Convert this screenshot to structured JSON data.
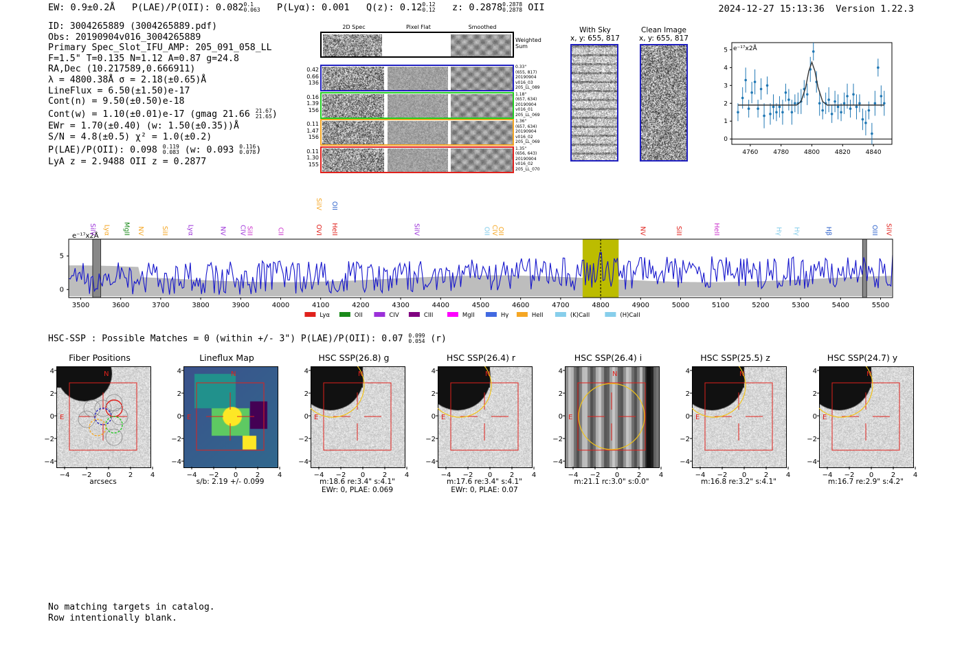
{
  "header": {
    "ew_text": "EW: 0.9±0.2Å",
    "plae_label": "P(LAE)/P(OII): 0.082",
    "plae_hi": "0.1",
    "plae_lo": "0.063",
    "plya_text": "P(Lyα): 0.001",
    "qz_label": "Q(z): 0.12",
    "qz_hi": "0.12",
    "qz_lo": "0.12",
    "z_label": "z: 0.2878",
    "z_hi": "0.2878",
    "z_lo": "0.2878",
    "z_line": "OII",
    "timestamp": "2024-12-27 15:13:36",
    "version": "Version 1.22.3"
  },
  "info": {
    "l1": "ID: 3004265889 (3004265889.pdf)",
    "l2": "Obs: 20190904v016_3004265889",
    "l3": "Primary Spec_Slot_IFU_AMP: 205_091_058_LL",
    "l4": "F=1.5\"  T=0.135  N=1.12  A=0.87  g=24.8",
    "l5": "RA,Dec (10.217589,0.666911)",
    "l6": "λ = 4800.38Å  σ = 2.18(±0.65)Å",
    "l7": "LineFlux = 6.50(±1.50)e-17",
    "l8": "Cont(n) = 9.50(±0.50)e-18",
    "l9a": "Cont(w) = 1.10(±0.01)e-17 (gmag 21.66",
    "l9hi": "21.67",
    "l9lo": "21.65",
    "l9b": ")",
    "l10": "EWr = 1.70(±0.40) (w: 1.50(±0.35))Å",
    "l11": "S/N = 4.8(±0.5)  χ² = 1.0(±0.2)",
    "l12a": "P(LAE)/P(OII): 0.098",
    "l12hi": "0.119",
    "l12lo": "0.083",
    "l12b": "(w: 0.093",
    "l12whi": "0.116",
    "l12wlo": "0.078",
    "l12c": ")",
    "l13": "LyA z = 2.9488  OII z = 0.2877"
  },
  "cutouts": {
    "col_2d": "2D Spec",
    "col_flat": "Pixel Flat",
    "col_smooth": "Smoothed",
    "weighted": "Weighted Sum",
    "rows": [
      {
        "left": [
          "0.42",
          "0.66",
          "136"
        ],
        "right": [
          "0.33\"",
          "(655, 817)",
          "20190904",
          "v016_03",
          "205_LL_089"
        ],
        "color": "#1f1fbf"
      },
      {
        "left": [
          "0.16",
          "1.39",
          "156"
        ],
        "right": [
          "1.18\"",
          "(657, 634)",
          "20190904",
          "v016_01",
          "205_LL_069"
        ],
        "color": "#22cc22"
      },
      {
        "left": [
          "0.11",
          "1.47",
          "156"
        ],
        "right": [
          "1.36\"",
          "(657, 634)",
          "20190904",
          "v016_02",
          "205_LL_069"
        ],
        "color": "#f5a623"
      },
      {
        "left": [
          "0.11",
          "1.30",
          "155"
        ],
        "right": [
          "1.35\"",
          "(656, 643)",
          "20190904",
          "v016_02",
          "205_LL_070"
        ],
        "color": "#e0211c"
      }
    ]
  },
  "sky": {
    "with_sky_title": "With Sky",
    "with_sky_coords": "x, y: 655, 817",
    "clean_title": "Clean Image",
    "clean_coords": "x, y: 655, 817"
  },
  "zoom_chart": {
    "unit_label": "e⁻¹⁷x2Å",
    "x_ticks": [
      "4760",
      "4780",
      "4800",
      "4820",
      "4840"
    ],
    "y_ticks": [
      "0",
      "1",
      "2",
      "3",
      "4",
      "5"
    ]
  },
  "full_spectrum": {
    "unit_label": "e⁻¹⁷x2Å",
    "x_ticks": [
      "3500",
      "3600",
      "3700",
      "3800",
      "3900",
      "4000",
      "4100",
      "4200",
      "4300",
      "4400",
      "4500",
      "4600",
      "4700",
      "4800",
      "4900",
      "5000",
      "5100",
      "5200",
      "5300",
      "5400",
      "5500"
    ],
    "y_ticks": [
      "0",
      "5"
    ],
    "line_labels": [
      {
        "text": "SiIV",
        "x": 3520,
        "color": "#9b30d9",
        "row": 1
      },
      {
        "text": "Lyα",
        "x": 3555,
        "color": "#f5a623",
        "row": 1
      },
      {
        "text": "MgII",
        "x": 3605,
        "color": "#1a8a1a",
        "row": 1
      },
      {
        "text": "NV",
        "x": 3640,
        "color": "#f5a623",
        "row": 1
      },
      {
        "text": "SiII",
        "x": 3700,
        "color": "#f5a623",
        "row": 1
      },
      {
        "text": "Lyα",
        "x": 3765,
        "color": "#9b30d9",
        "row": 1
      },
      {
        "text": "NV",
        "x": 3845,
        "color": "#9b30d9",
        "row": 1
      },
      {
        "text": "CIV",
        "x": 3895,
        "color": "#9b30d9",
        "row": 1
      },
      {
        "text": "SiII",
        "x": 3912,
        "color": "#cc33cc",
        "row": 1
      },
      {
        "text": "CII",
        "x": 3990,
        "color": "#cc33cc",
        "row": 1
      },
      {
        "text": "OVI",
        "x": 4085,
        "color": "#e0211c",
        "row": 1
      },
      {
        "text": "SiIV",
        "x": 4085,
        "color": "#f5a623",
        "row": 0
      },
      {
        "text": "HeII",
        "x": 4125,
        "color": "#e0211c",
        "row": 1
      },
      {
        "text": "OII",
        "x": 4125,
        "color": "#3366cc",
        "row": 0
      },
      {
        "text": "SiIV",
        "x": 4330,
        "color": "#9b30d9",
        "row": 1
      },
      {
        "text": "OII",
        "x": 4505,
        "color": "#87ceeb",
        "row": 1
      },
      {
        "text": "CIV",
        "x": 4525,
        "color": "#f5a623",
        "row": 1
      },
      {
        "text": "OII",
        "x": 4540,
        "color": "#f5a623",
        "row": 1
      },
      {
        "text": "NV",
        "x": 4895,
        "color": "#e0211c",
        "row": 1
      },
      {
        "text": "SiII",
        "x": 4985,
        "color": "#e0211c",
        "row": 1
      },
      {
        "text": "HeII",
        "x": 5080,
        "color": "#cc33cc",
        "row": 1
      },
      {
        "text": "Hγ",
        "x": 5235,
        "color": "#87ceeb",
        "row": 1
      },
      {
        "text": "Hγ",
        "x": 5280,
        "color": "#87ceeb",
        "row": 1
      },
      {
        "text": "Hβ",
        "x": 5360,
        "color": "#3366cc",
        "row": 1
      },
      {
        "text": "OIII",
        "x": 5475,
        "color": "#3366cc",
        "row": 1
      },
      {
        "text": "SiIV",
        "x": 5510,
        "color": "#e0211c",
        "row": 1
      }
    ],
    "legend": [
      {
        "label": "Lyα",
        "color": "#e0211c"
      },
      {
        "label": "OII",
        "color": "#1a8a1a"
      },
      {
        "label": "CIV",
        "color": "#9b30d9"
      },
      {
        "label": "CIII",
        "color": "#800080"
      },
      {
        "label": "MgII",
        "color": "#ff00ff"
      },
      {
        "label": "Hγ",
        "color": "#4169e1"
      },
      {
        "label": "HeII",
        "color": "#f5a623"
      },
      {
        "label": "(K)CaII",
        "color": "#87ceeb"
      },
      {
        "label": "(H)CaII",
        "color": "#87ceeb"
      }
    ]
  },
  "hsc": {
    "summary_a": "HSC-SSP : Possible Matches = 0 (within +/- 3\")  P(LAE)/P(OII): 0.07",
    "summary_hi": "0.099",
    "summary_lo": "0.054",
    "summary_b": "(r)",
    "axis_ticks": [
      "−4",
      "−2",
      "0",
      "2",
      "4"
    ],
    "panels": [
      {
        "title": "Fiber Positions",
        "caption1": "arcsecs",
        "caption2": ""
      },
      {
        "title": "Lineflux Map",
        "caption1": "s/b: 2.19 +/- 0.099",
        "caption2": ""
      },
      {
        "title": "HSC SSP(26.8) g",
        "caption1": "m:18.6  re:3.4\"  s:4.1\"",
        "caption2": "EWr: 0, PLAE: 0.069"
      },
      {
        "title": "HSC SSP(26.4) r",
        "caption1": "m:17.6  re:3.4\"  s:4.1\"",
        "caption2": "EWr: 0, PLAE: 0.07"
      },
      {
        "title": "HSC SSP(26.4) i",
        "caption1": "m:21.1 rc:3.0\"  s:0.0\"",
        "caption2": ""
      },
      {
        "title": "HSC SSP(25.5) z",
        "caption1": "m:16.8  re:3.2\"  s:4.1\"",
        "caption2": ""
      },
      {
        "title": "HSC SSP(24.7) y",
        "caption1": "m:16.7  re:2.9\"  s:4.2\"",
        "caption2": ""
      }
    ],
    "north": "N",
    "east": "E"
  },
  "footer": {
    "line1": "No matching targets in catalog.",
    "line2": "Row intentionally blank."
  },
  "chart_data": [
    {
      "type": "scatter",
      "x": [
        4752,
        4755,
        4757,
        4759,
        4761,
        4763,
        4765,
        4767,
        4769,
        4771,
        4773,
        4775,
        4777,
        4779,
        4781,
        4783,
        4785,
        4787,
        4789,
        4791,
        4793,
        4795,
        4797,
        4799,
        4801,
        4803,
        4805,
        4807,
        4809,
        4811,
        4813,
        4815,
        4817,
        4819,
        4821,
        4823,
        4825,
        4827,
        4829,
        4831,
        4833,
        4835,
        4837,
        4839,
        4841,
        4843,
        4845,
        4847
      ],
      "y": [
        1.5,
        2.3,
        3.3,
        1.7,
        2.6,
        3.2,
        1.7,
        2.8,
        1.3,
        3.0,
        1.4,
        1.8,
        1.5,
        1.8,
        1.5,
        2.6,
        2.2,
        1.5,
        2.0,
        2.0,
        2.1,
        2.8,
        2.5,
        3.9,
        4.9,
        3.2,
        2.0,
        1.6,
        2.0,
        2.2,
        1.4,
        2.1,
        1.8,
        1.5,
        2.0,
        2.4,
        1.7,
        2.5,
        1.8,
        2.0,
        1.1,
        0.9,
        1.6,
        0.3,
        2.0,
        4.0,
        2.4,
        2.0
      ],
      "fit_x": [
        4752,
        4790,
        4793,
        4796,
        4798,
        4800,
        4802,
        4804,
        4807,
        4810,
        4847
      ],
      "fit_y": [
        1.9,
        1.9,
        2.1,
        2.9,
        3.8,
        4.3,
        3.8,
        2.9,
        2.1,
        1.9,
        1.9
      ],
      "xlim": [
        4748,
        4852
      ],
      "ylim": [
        -0.3,
        5.4
      ],
      "ylabel": "e⁻¹⁷x2Å"
    },
    {
      "type": "line",
      "x_range": [
        3470,
        5530
      ],
      "ylim": [
        -1.2,
        7.5
      ],
      "highlight_band": [
        4755,
        4845
      ],
      "marker": 4800,
      "masked": [
        [
          3530,
          3550
        ],
        [
          5455,
          5465
        ]
      ],
      "ylabel": "e⁻¹⁷x2Å"
    }
  ]
}
